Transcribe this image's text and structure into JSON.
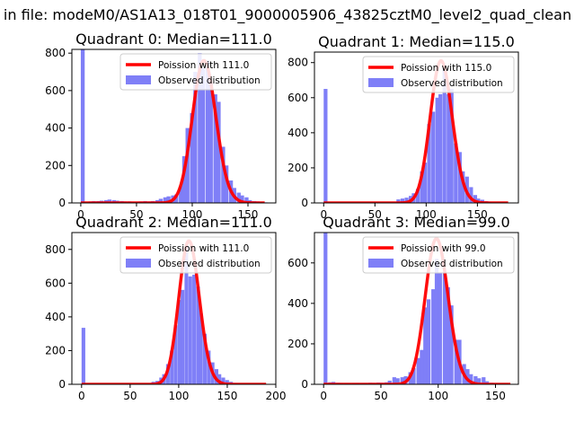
{
  "suptitle": "in file: modeM0/AS1A13_018T01_9000005906_43825cztM0_level2_quad_clean",
  "legend_labels": {
    "observed": "Observed distribution"
  },
  "colors": {
    "hist": "#7f7ff7",
    "fit": "#ff0000"
  },
  "chart_data": [
    {
      "type": "bar",
      "title": "Quadrant 0: Median=111.0",
      "legend": {
        "poisson": "Poission with 111.0",
        "observed": "Observed distribution",
        "placement": "upper right"
      },
      "xlim": [
        -8,
        175
      ],
      "ylim": [
        0,
        820
      ],
      "xticks": [
        0,
        50,
        100,
        150
      ],
      "yticks": [
        0,
        200,
        400,
        600,
        800
      ],
      "bin_width": 3.5,
      "bins": [
        [
          0,
          820
        ],
        [
          7,
          8
        ],
        [
          10,
          10
        ],
        [
          14,
          10
        ],
        [
          17,
          12
        ],
        [
          21,
          15
        ],
        [
          24,
          18
        ],
        [
          28,
          15
        ],
        [
          31,
          12
        ],
        [
          35,
          10
        ],
        [
          38,
          8
        ],
        [
          42,
          8
        ],
        [
          45,
          6
        ],
        [
          49,
          6
        ],
        [
          52,
          8
        ],
        [
          56,
          10
        ],
        [
          60,
          8
        ],
        [
          63,
          10
        ],
        [
          67,
          15
        ],
        [
          70,
          22
        ],
        [
          74,
          30
        ],
        [
          77,
          35
        ],
        [
          81,
          40
        ],
        [
          84,
          45
        ],
        [
          88,
          90
        ],
        [
          91,
          250
        ],
        [
          94,
          400
        ],
        [
          98,
          480
        ],
        [
          101,
          700
        ],
        [
          105,
          800
        ],
        [
          108,
          720
        ],
        [
          112,
          760
        ],
        [
          115,
          640
        ],
        [
          119,
          580
        ],
        [
          122,
          540
        ],
        [
          126,
          300
        ],
        [
          129,
          200
        ],
        [
          133,
          120
        ],
        [
          136,
          80
        ],
        [
          140,
          55
        ],
        [
          143,
          40
        ],
        [
          147,
          30
        ],
        [
          150,
          15
        ],
        [
          154,
          10
        ],
        [
          157,
          8
        ],
        [
          161,
          5
        ],
        [
          164,
          3
        ]
      ],
      "fit": {
        "label": "Poission with 111.0",
        "mean": 111.0,
        "peak": 760,
        "x_range": [
          0,
          165
        ]
      }
    },
    {
      "type": "bar",
      "title": "Quadrant 1: Median=115.0",
      "legend": {
        "poisson": "Poission with 115.0",
        "observed": "Observed distribution",
        "placement": "upper right"
      },
      "xlim": [
        -9,
        190
      ],
      "ylim": [
        0,
        860
      ],
      "xticks": [
        0,
        50,
        100,
        150
      ],
      "yticks": [
        0,
        200,
        400,
        600,
        800
      ],
      "bin_width": 3.7,
      "bins": [
        [
          0,
          650
        ],
        [
          71,
          20
        ],
        [
          75,
          25
        ],
        [
          79,
          30
        ],
        [
          83,
          40
        ],
        [
          86,
          55
        ],
        [
          90,
          80
        ],
        [
          94,
          180
        ],
        [
          97,
          230
        ],
        [
          101,
          450
        ],
        [
          105,
          520
        ],
        [
          109,
          600
        ],
        [
          112,
          620
        ],
        [
          116,
          760
        ],
        [
          120,
          620
        ],
        [
          123,
          650
        ],
        [
          127,
          340
        ],
        [
          131,
          290
        ],
        [
          134,
          180
        ],
        [
          138,
          150
        ],
        [
          142,
          90
        ],
        [
          146,
          45
        ],
        [
          149,
          25
        ],
        [
          153,
          18
        ],
        [
          157,
          10
        ],
        [
          160,
          6
        ]
      ],
      "fit": {
        "label": "Poission with 115.0",
        "mean": 115.0,
        "peak": 810,
        "x_range": [
          0,
          180
        ]
      }
    },
    {
      "type": "bar",
      "title": "Quadrant 2: Median=111.0",
      "legend": {
        "poisson": "Poission with 111.0",
        "observed": "Observed distribution",
        "placement": "upper right"
      },
      "xlim": [
        -10,
        200
      ],
      "ylim": [
        0,
        900
      ],
      "xticks": [
        0,
        50,
        100,
        150,
        200
      ],
      "yticks": [
        0,
        200,
        400,
        600,
        800
      ],
      "bin_width": 3.8,
      "bins": [
        [
          0,
          335
        ],
        [
          72,
          15
        ],
        [
          76,
          20
        ],
        [
          80,
          40
        ],
        [
          83,
          60
        ],
        [
          87,
          120
        ],
        [
          91,
          200
        ],
        [
          95,
          350
        ],
        [
          99,
          500
        ],
        [
          102,
          560
        ],
        [
          106,
          820
        ],
        [
          110,
          640
        ],
        [
          114,
          650
        ],
        [
          118,
          580
        ],
        [
          121,
          420
        ],
        [
          125,
          300
        ],
        [
          129,
          200
        ],
        [
          133,
          130
        ],
        [
          137,
          90
        ],
        [
          140,
          60
        ],
        [
          144,
          40
        ],
        [
          148,
          25
        ],
        [
          152,
          15
        ],
        [
          156,
          8
        ],
        [
          159,
          5
        ]
      ],
      "fit": {
        "label": "Poission with 111.0",
        "mean": 111.0,
        "peak": 850,
        "x_range": [
          0,
          190
        ]
      }
    },
    {
      "type": "bar",
      "title": "Quadrant 3: Median=99.0",
      "legend": {
        "poisson": "Poission with 99.0",
        "observed": "Observed distribution",
        "placement": "upper right"
      },
      "xlim": [
        -8,
        170
      ],
      "ylim": [
        0,
        750
      ],
      "xticks": [
        0,
        50,
        100,
        150
      ],
      "yticks": [
        0,
        200,
        400,
        600
      ],
      "bin_width": 3.3,
      "bins": [
        [
          0,
          750
        ],
        [
          4,
          10
        ],
        [
          7,
          12
        ],
        [
          11,
          8
        ],
        [
          14,
          6
        ],
        [
          18,
          5
        ],
        [
          21,
          4
        ],
        [
          25,
          5
        ],
        [
          28,
          6
        ],
        [
          32,
          5
        ],
        [
          35,
          6
        ],
        [
          39,
          8
        ],
        [
          42,
          7
        ],
        [
          46,
          9
        ],
        [
          49,
          8
        ],
        [
          53,
          10
        ],
        [
          56,
          18
        ],
        [
          60,
          35
        ],
        [
          63,
          30
        ],
        [
          67,
          35
        ],
        [
          70,
          40
        ],
        [
          74,
          60
        ],
        [
          77,
          80
        ],
        [
          81,
          130
        ],
        [
          84,
          170
        ],
        [
          87,
          380
        ],
        [
          90,
          420
        ],
        [
          94,
          470
        ],
        [
          97,
          620
        ],
        [
          100,
          550
        ],
        [
          104,
          550
        ],
        [
          107,
          480
        ],
        [
          110,
          390
        ],
        [
          114,
          220
        ],
        [
          117,
          220
        ],
        [
          121,
          100
        ],
        [
          124,
          75
        ],
        [
          127,
          50
        ],
        [
          131,
          40
        ],
        [
          134,
          30
        ],
        [
          138,
          35
        ],
        [
          141,
          15
        ],
        [
          145,
          8
        ],
        [
          148,
          5
        ]
      ],
      "fit": {
        "label": "Poission with 99.0",
        "mean": 99.0,
        "peak": 720,
        "x_range": [
          0,
          163
        ]
      }
    }
  ]
}
